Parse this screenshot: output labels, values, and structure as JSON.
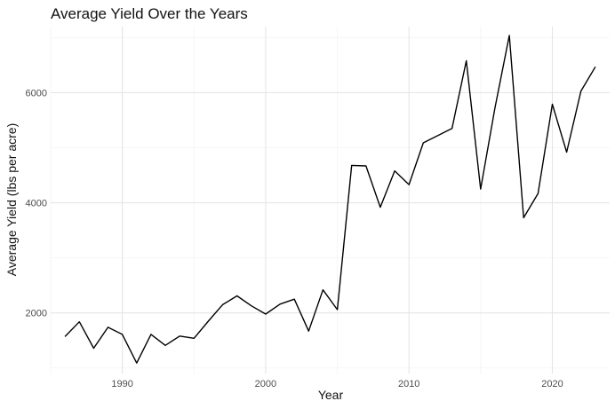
{
  "chart_data": {
    "type": "line",
    "title": "Average Yield Over the Years",
    "xlabel": "Year",
    "ylabel": "Average Yield (lbs per acre)",
    "xlim": [
      1985,
      2024
    ],
    "ylim": [
      900,
      7200
    ],
    "x_ticks": [
      1990,
      2000,
      2010,
      2020
    ],
    "x_minor_ticks": [
      1985,
      1995,
      2005,
      2015
    ],
    "y_ticks": [
      2000,
      4000,
      6000
    ],
    "y_minor_ticks": [
      1000,
      3000,
      5000,
      7000
    ],
    "grid": true,
    "series": [
      {
        "color": "#000000",
        "x": [
          1986,
          1987,
          1988,
          1989,
          1990,
          1991,
          1992,
          1993,
          1994,
          1995,
          1996,
          1997,
          1998,
          1999,
          2000,
          2001,
          2002,
          2003,
          2004,
          2005,
          2006,
          2007,
          2008,
          2009,
          2010,
          2011,
          2012,
          2013,
          2014,
          2015,
          2016,
          2017,
          2018,
          2019,
          2020,
          2021,
          2022,
          2023
        ],
        "y": [
          1570,
          1840,
          1360,
          1740,
          1610,
          1090,
          1610,
          1410,
          1580,
          1540,
          1850,
          2150,
          2310,
          2130,
          1980,
          2160,
          2250,
          1670,
          2420,
          2060,
          4680,
          4670,
          3920,
          4580,
          4330,
          5090,
          5220,
          5350,
          6580,
          4250,
          5730,
          7040,
          3730,
          4170,
          5790,
          4920,
          6030,
          6470
        ]
      }
    ]
  }
}
